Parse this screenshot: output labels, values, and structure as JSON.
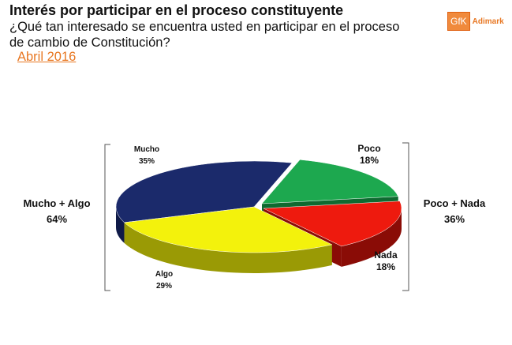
{
  "chart_data": {
    "type": "pie3d",
    "title": "Interés por participar en el proceso constituyente",
    "subtitle": "¿Qué tan interesado se encuentra usted en participar en el proceso de cambio de Constitución?",
    "date": "Abril 2016",
    "logo": {
      "brand": "GfK",
      "name": "Adimark"
    },
    "categories": [
      "Mucho",
      "Poco",
      "Nada",
      "Algo"
    ],
    "values": [
      35,
      18,
      18,
      29
    ],
    "value_labels": [
      "35%",
      "18%",
      "18%",
      "29%"
    ],
    "colors": [
      "#1b2a6b",
      "#1da84f",
      "#ee1a0e",
      "#f3f20c"
    ],
    "side_colors": [
      "#0f1a48",
      "#0e6a30",
      "#8a0c06",
      "#9a9a05"
    ],
    "groups": [
      {
        "name": "Mucho + Algo",
        "value": 64,
        "label": "64%"
      },
      {
        "name": "Poco + Nada",
        "value": 36,
        "label": "36%"
      }
    ]
  }
}
